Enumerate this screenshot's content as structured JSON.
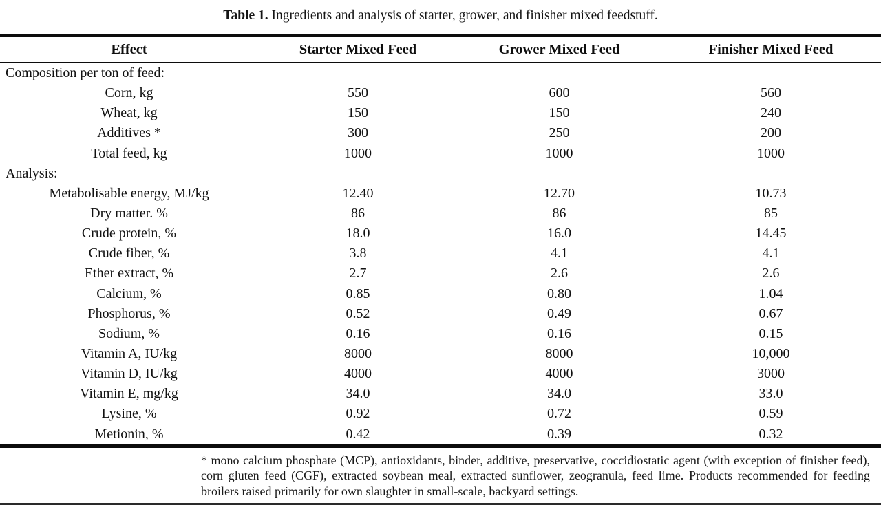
{
  "caption": {
    "label": "Table 1.",
    "text": "Ingredients and analysis of starter, grower, and finisher mixed feedstuff."
  },
  "table": {
    "columns": [
      "Effect",
      "Starter Mixed Feed",
      "Grower Mixed Feed",
      "Finisher Mixed Feed"
    ],
    "rows": [
      {
        "label": "Composition per ton of feed:",
        "values": [
          "",
          "",
          ""
        ]
      },
      {
        "label": "Corn, kg",
        "values": [
          "550",
          "600",
          "560"
        ]
      },
      {
        "label": "Wheat, kg",
        "values": [
          "150",
          "150",
          "240"
        ]
      },
      {
        "label": "Additives *",
        "values": [
          "300",
          "250",
          "200"
        ]
      },
      {
        "label": "Total feed, kg",
        "values": [
          "1000",
          "1000",
          "1000"
        ]
      },
      {
        "label": "Analysis:",
        "values": [
          "",
          "",
          ""
        ]
      },
      {
        "label": "Metabolisable energy, MJ/kg",
        "values": [
          "12.40",
          "12.70",
          "10.73"
        ]
      },
      {
        "label": "Dry matter. %",
        "values": [
          "86",
          "86",
          "85"
        ]
      },
      {
        "label": "Crude protein, %",
        "values": [
          "18.0",
          "16.0",
          "14.45"
        ]
      },
      {
        "label": "Crude fiber, %",
        "values": [
          "3.8",
          "4.1",
          "4.1"
        ]
      },
      {
        "label": "Ether extract, %",
        "values": [
          "2.7",
          "2.6",
          "2.6"
        ]
      },
      {
        "label": "Calcium, %",
        "values": [
          "0.85",
          "0.80",
          "1.04"
        ]
      },
      {
        "label": "Phosphorus, %",
        "values": [
          "0.52",
          "0.49",
          "0.67"
        ]
      },
      {
        "label": "Sodium, %",
        "values": [
          "0.16",
          "0.16",
          "0.15"
        ]
      },
      {
        "label": "Vitamin A, IU/kg",
        "values": [
          "8000",
          "8000",
          "10,000"
        ]
      },
      {
        "label": "Vitamin D, IU/kg",
        "values": [
          "4000",
          "4000",
          "3000"
        ]
      },
      {
        "label": "Vitamin E, mg/kg",
        "values": [
          "34.0",
          "34.0",
          "33.0"
        ]
      },
      {
        "label": "Lysine, %",
        "values": [
          "0.92",
          "0.72",
          "0.59"
        ]
      },
      {
        "label": "Metionin, %",
        "values": [
          "0.42",
          "0.39",
          "0.32"
        ]
      }
    ]
  },
  "footnote": "* mono calcium phosphate (MCP), antioxidants, binder, additive, preservative, coccidiostatic agent (with exception of finisher feed), corn gluten feed (CGF), extracted soybean meal, extracted sunflower, zeogranula, feed lime. Products recommended for feeding broilers raised primarily for own slaughter in small-scale, backyard settings."
}
